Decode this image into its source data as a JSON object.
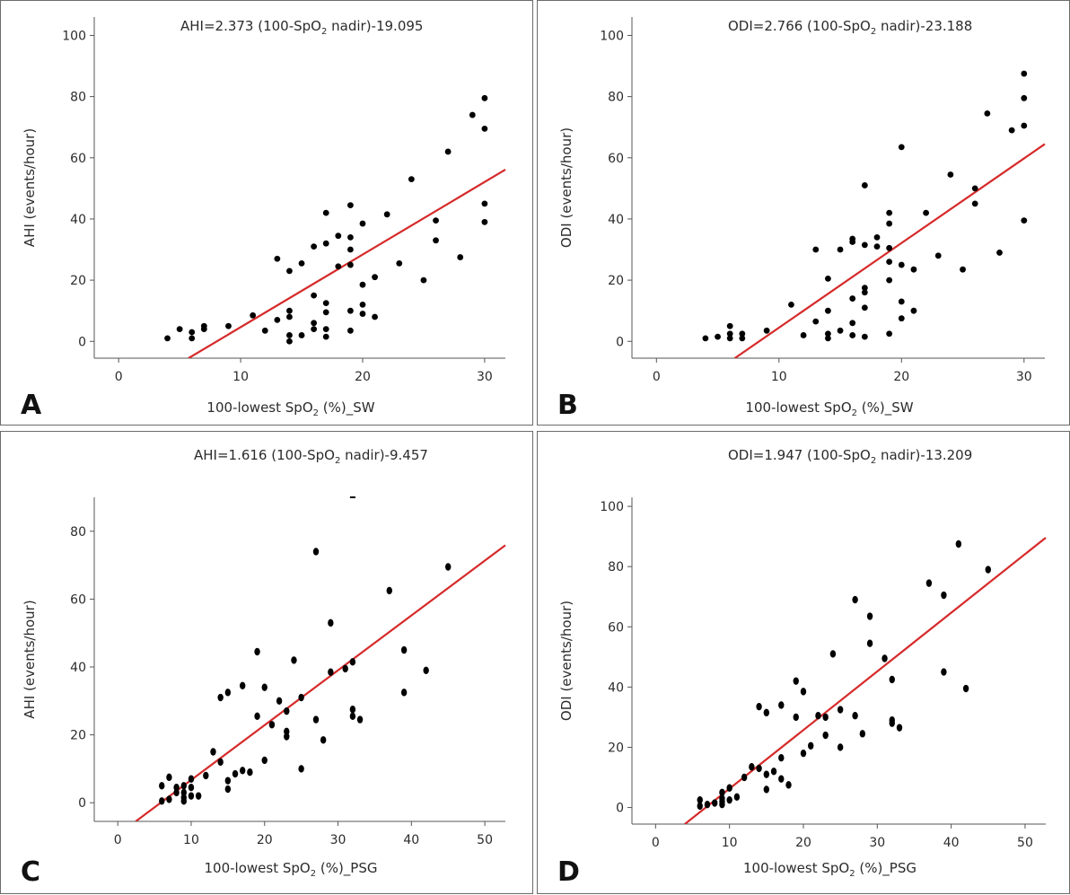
{
  "chart_data": [
    {
      "type": "scatter",
      "panel_label": "A",
      "equation": {
        "prefix": "AHI=2.373 (100-SpO",
        "sub": "2",
        "suffix": " nadir)-19.095"
      },
      "xlabel": {
        "prefix": "100-lowest SpO",
        "sub": "2",
        "suffix": " (%)_SW"
      },
      "ylabel": "AHI (events/hour)",
      "xlim": [
        -2,
        31.7
      ],
      "ylim": [
        -5.5,
        106
      ],
      "xticks": [
        0,
        10,
        20,
        30
      ],
      "yticks": [
        0,
        20,
        40,
        60,
        80,
        100
      ],
      "fit": {
        "slope": 2.373,
        "intercept": -19.095
      },
      "line_color": "#d62a2a",
      "points": [
        [
          4,
          1
        ],
        [
          5,
          4
        ],
        [
          6,
          1
        ],
        [
          6,
          3
        ],
        [
          7,
          4
        ],
        [
          7,
          5
        ],
        [
          9,
          5
        ],
        [
          11,
          8.5
        ],
        [
          12,
          3.5
        ],
        [
          13,
          7
        ],
        [
          13,
          27
        ],
        [
          14,
          10
        ],
        [
          14,
          8
        ],
        [
          14,
          2
        ],
        [
          14,
          0
        ],
        [
          14,
          23
        ],
        [
          15,
          25.5
        ],
        [
          15,
          2
        ],
        [
          16,
          31
        ],
        [
          16,
          15
        ],
        [
          16,
          6
        ],
        [
          16,
          4
        ],
        [
          17,
          42
        ],
        [
          17,
          32
        ],
        [
          17,
          12.5
        ],
        [
          17,
          9.5
        ],
        [
          17,
          4
        ],
        [
          17,
          1.5
        ],
        [
          18,
          34.5
        ],
        [
          18,
          24.5
        ],
        [
          19,
          44.5
        ],
        [
          19,
          34
        ],
        [
          19,
          30
        ],
        [
          19,
          25
        ],
        [
          19,
          10
        ],
        [
          19,
          3.5
        ],
        [
          20,
          38.5
        ],
        [
          20,
          18.5
        ],
        [
          20,
          12
        ],
        [
          20,
          9
        ],
        [
          21,
          21
        ],
        [
          21,
          8
        ],
        [
          22,
          41.5
        ],
        [
          23,
          25.5
        ],
        [
          24,
          53
        ],
        [
          25,
          20
        ],
        [
          26,
          39.5
        ],
        [
          26,
          33
        ],
        [
          27,
          62
        ],
        [
          28,
          27.5
        ],
        [
          29,
          74
        ],
        [
          30,
          79.5
        ],
        [
          30,
          69.5
        ],
        [
          30,
          45
        ],
        [
          30,
          39
        ]
      ]
    },
    {
      "type": "scatter",
      "panel_label": "B",
      "equation": {
        "prefix": "ODI=2.766 (100-SpO",
        "sub": "2",
        "suffix": " nadir)-23.188"
      },
      "xlabel": {
        "prefix": "100-lowest SpO",
        "sub": "2",
        "suffix": " (%)_SW"
      },
      "ylabel": "ODI (events/hour)",
      "xlim": [
        -2,
        31.7
      ],
      "ylim": [
        -5.5,
        106
      ],
      "xticks": [
        0,
        10,
        20,
        30
      ],
      "yticks": [
        0,
        20,
        40,
        60,
        80,
        100
      ],
      "fit": {
        "slope": 2.766,
        "intercept": -23.188
      },
      "line_color": "#d62a2a",
      "points": [
        [
          4,
          1
        ],
        [
          5,
          1.5
        ],
        [
          6,
          5
        ],
        [
          6,
          2.5
        ],
        [
          6,
          1
        ],
        [
          7,
          2.5
        ],
        [
          7,
          1
        ],
        [
          9,
          3.5
        ],
        [
          11,
          12
        ],
        [
          12,
          2
        ],
        [
          13,
          30
        ],
        [
          13,
          6.5
        ],
        [
          14,
          20.5
        ],
        [
          14,
          10
        ],
        [
          14,
          2.5
        ],
        [
          14,
          1
        ],
        [
          15,
          30
        ],
        [
          15,
          3.5
        ],
        [
          16,
          33.5
        ],
        [
          16,
          32.5
        ],
        [
          16,
          14
        ],
        [
          16,
          6
        ],
        [
          16,
          2
        ],
        [
          17,
          51
        ],
        [
          17,
          31.5
        ],
        [
          17,
          17.5
        ],
        [
          17,
          16
        ],
        [
          17,
          11
        ],
        [
          17,
          1.5
        ],
        [
          18,
          34
        ],
        [
          18,
          31
        ],
        [
          19,
          42
        ],
        [
          19,
          38.5
        ],
        [
          19,
          30.5
        ],
        [
          19,
          26
        ],
        [
          19,
          20
        ],
        [
          19,
          2.5
        ],
        [
          20,
          63.5
        ],
        [
          20,
          25
        ],
        [
          20,
          13
        ],
        [
          20,
          7.5
        ],
        [
          21,
          23.5
        ],
        [
          21,
          10
        ],
        [
          22,
          42
        ],
        [
          23,
          28
        ],
        [
          24,
          54.5
        ],
        [
          25,
          23.5
        ],
        [
          26,
          50
        ],
        [
          26,
          45
        ],
        [
          27,
          74.5
        ],
        [
          28,
          29
        ],
        [
          29,
          69
        ],
        [
          30,
          87.5
        ],
        [
          30,
          79.5
        ],
        [
          30,
          70.5
        ],
        [
          30,
          39.5
        ]
      ]
    },
    {
      "type": "scatter",
      "panel_label": "C",
      "equation": {
        "prefix": "AHI=1.616 (100-SpO",
        "sub": "2",
        "suffix": " nadir)-9.457"
      },
      "xlabel": {
        "prefix": "100-lowest SpO",
        "sub": "2",
        "suffix": " (%)_PSG"
      },
      "ylabel": "AHI (events/hour)",
      "xlim": [
        -3.2,
        52.8
      ],
      "ylim": [
        -5.5,
        90
      ],
      "xticks": [
        0,
        10,
        20,
        30,
        40,
        50
      ],
      "yticks": [
        0,
        20,
        40,
        60,
        80
      ],
      "fit": {
        "slope": 1.616,
        "intercept": -9.457
      },
      "line_color": "#d62a2a",
      "points": [
        [
          6,
          5
        ],
        [
          6,
          0.5
        ],
        [
          7,
          7.5
        ],
        [
          7,
          1
        ],
        [
          8,
          4.5
        ],
        [
          8,
          3
        ],
        [
          9,
          5
        ],
        [
          9,
          3
        ],
        [
          9,
          1.5
        ],
        [
          9,
          0.5
        ],
        [
          10,
          7
        ],
        [
          10,
          4.5
        ],
        [
          10,
          2
        ],
        [
          11,
          2
        ],
        [
          12,
          8
        ],
        [
          13,
          15
        ],
        [
          14,
          31
        ],
        [
          14,
          12
        ],
        [
          15,
          32.5
        ],
        [
          15,
          6.5
        ],
        [
          15,
          4
        ],
        [
          16,
          8.5
        ],
        [
          17,
          34.5
        ],
        [
          17,
          9.5
        ],
        [
          18,
          9
        ],
        [
          19,
          44.5
        ],
        [
          19,
          25.5
        ],
        [
          20,
          34
        ],
        [
          20,
          12.5
        ],
        [
          21,
          23
        ],
        [
          22,
          30
        ],
        [
          23,
          27
        ],
        [
          23,
          21
        ],
        [
          23,
          19.5
        ],
        [
          24,
          42
        ],
        [
          25,
          31
        ],
        [
          25,
          10
        ],
        [
          27,
          74
        ],
        [
          27,
          24.5
        ],
        [
          28,
          18.5
        ],
        [
          29,
          53
        ],
        [
          29,
          38.5
        ],
        [
          31,
          39.5
        ],
        [
          32,
          41.5
        ],
        [
          32,
          27.5
        ],
        [
          32,
          25.5
        ],
        [
          33,
          24.5
        ],
        [
          37,
          62.5
        ],
        [
          39,
          45
        ],
        [
          39,
          32.5
        ],
        [
          42,
          39
        ],
        [
          45,
          69.5
        ]
      ],
      "clipped_points": [
        [
          32,
          90
        ]
      ]
    },
    {
      "type": "scatter",
      "panel_label": "D",
      "equation": {
        "prefix": "ODI=1.947 (100-SpO",
        "sub": "2",
        "suffix": " nadir)-13.209"
      },
      "xlabel": {
        "prefix": "100-lowest SpO",
        "sub": "2",
        "suffix": " (%)_PSG"
      },
      "ylabel": "ODI (events/hour)",
      "xlim": [
        -3.2,
        52.8
      ],
      "ylim": [
        -5.5,
        103
      ],
      "xticks": [
        0,
        10,
        20,
        30,
        40,
        50
      ],
      "yticks": [
        0,
        20,
        40,
        60,
        80,
        100
      ],
      "fit": {
        "slope": 1.947,
        "intercept": -13.209
      },
      "line_color": "#d62a2a",
      "points": [
        [
          6,
          2.5
        ],
        [
          6,
          0.5
        ],
        [
          7,
          1
        ],
        [
          8,
          1.5
        ],
        [
          9,
          5
        ],
        [
          9,
          3
        ],
        [
          9,
          2
        ],
        [
          9,
          1
        ],
        [
          10,
          6.5
        ],
        [
          10,
          2.5
        ],
        [
          11,
          3.5
        ],
        [
          12,
          10
        ],
        [
          13,
          13.5
        ],
        [
          14,
          33.5
        ],
        [
          14,
          13
        ],
        [
          15,
          31.5
        ],
        [
          15,
          11
        ],
        [
          15,
          6
        ],
        [
          16,
          12
        ],
        [
          17,
          34
        ],
        [
          17,
          16.5
        ],
        [
          17,
          9.5
        ],
        [
          18,
          7.5
        ],
        [
          19,
          42
        ],
        [
          19,
          30
        ],
        [
          20,
          38.5
        ],
        [
          20,
          18
        ],
        [
          21,
          20.5
        ],
        [
          22,
          30.5
        ],
        [
          23,
          30
        ],
        [
          23,
          24
        ],
        [
          24,
          51
        ],
        [
          25,
          32.5
        ],
        [
          25,
          20
        ],
        [
          27,
          69
        ],
        [
          27,
          30.5
        ],
        [
          28,
          24.5
        ],
        [
          29,
          63.5
        ],
        [
          29,
          54.5
        ],
        [
          31,
          49.5
        ],
        [
          32,
          42.5
        ],
        [
          32,
          29
        ],
        [
          32,
          28
        ],
        [
          33,
          26.5
        ],
        [
          37,
          74.5
        ],
        [
          39,
          70.5
        ],
        [
          39,
          45
        ],
        [
          41,
          87.5
        ],
        [
          42,
          39.5
        ],
        [
          45,
          79
        ]
      ]
    }
  ]
}
